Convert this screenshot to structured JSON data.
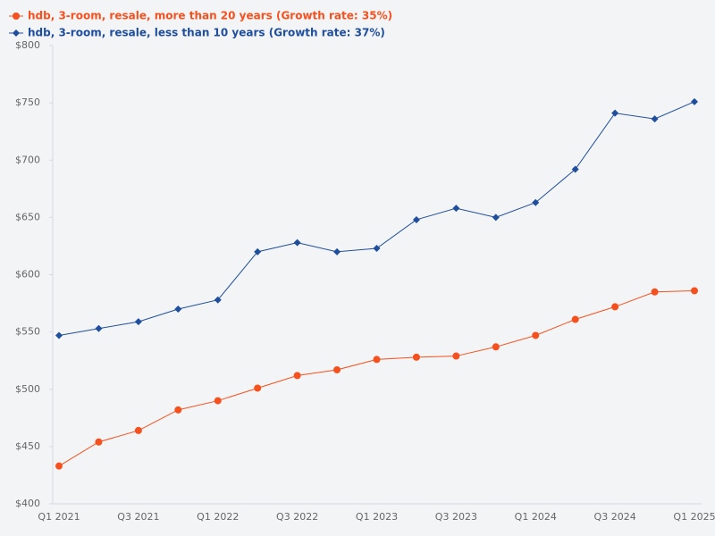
{
  "chart_data": {
    "type": "line",
    "categories": [
      "Q1 2021",
      null,
      "Q3 2021",
      null,
      "Q1 2022",
      null,
      "Q3 2022",
      null,
      "Q1 2023",
      null,
      "Q3 2023",
      null,
      "Q1 2024",
      null,
      "Q3 2024",
      null,
      "Q1 2025"
    ],
    "series": [
      {
        "name": "hdb, 3-room, resale, more than 20 years (Growth rate: 35%)",
        "color": "#f4511e",
        "marker": "circle",
        "values": [
          433,
          454,
          464,
          482,
          490,
          501,
          512,
          517,
          526,
          528,
          529,
          537,
          547,
          561,
          572,
          585,
          586
        ]
      },
      {
        "name": "hdb, 3-room, resale, less than 10 years (Growth rate: 37%)",
        "color": "#1f4e9c",
        "marker": "diamond",
        "values": [
          547,
          553,
          559,
          570,
          578,
          620,
          628,
          620,
          623,
          648,
          658,
          650,
          663,
          692,
          741,
          736,
          751
        ]
      }
    ],
    "ylim": [
      400,
      800
    ],
    "yticks": [
      {
        "value": 400,
        "label": "$400"
      },
      {
        "value": 450,
        "label": "$450"
      },
      {
        "value": 500,
        "label": "$500"
      },
      {
        "value": 550,
        "label": "$550"
      },
      {
        "value": 600,
        "label": "$600"
      },
      {
        "value": 650,
        "label": "$650"
      },
      {
        "value": 700,
        "label": "$700"
      },
      {
        "value": 750,
        "label": "$750"
      },
      {
        "value": 800,
        "label": "$800"
      }
    ],
    "grid": false
  }
}
